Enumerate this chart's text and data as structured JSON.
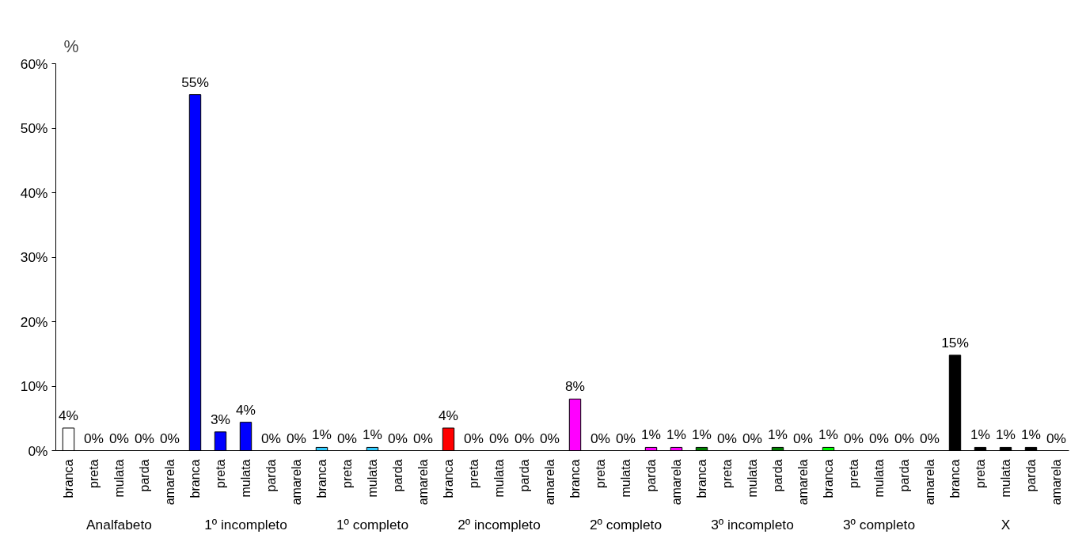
{
  "chart_data": {
    "type": "bar",
    "ylabel": "%",
    "categories": [
      "branca",
      "preta",
      "mulata",
      "parda",
      "amarela",
      "branca",
      "preta",
      "mulata",
      "parda",
      "amarela",
      "branca",
      "preta",
      "mulata",
      "parda",
      "amarela",
      "branca",
      "preta",
      "mulata",
      "parda",
      "amarela",
      "branca",
      "preta",
      "mulata",
      "parda",
      "amarela",
      "branca",
      "preta",
      "mulata",
      "parda",
      "amarela",
      "branca",
      "preta",
      "mulata",
      "parda",
      "amarela",
      "branca",
      "preta",
      "mulata",
      "parda",
      "amarela"
    ],
    "values": [
      3.5,
      0,
      0,
      0,
      0,
      55.2,
      2.9,
      4.4,
      0,
      0,
      0.5,
      0,
      0.5,
      0,
      0,
      3.5,
      0,
      0,
      0,
      0,
      8.0,
      0,
      0,
      0.5,
      0.5,
      0.5,
      0,
      0,
      0.5,
      0,
      0.5,
      0,
      0,
      0,
      0,
      14.8,
      0.5,
      0.5,
      0.5,
      0
    ],
    "value_labels": [
      "4%",
      "0%",
      "0%",
      "0%",
      "0%",
      "55%",
      "3%",
      "4%",
      "0%",
      "0%",
      "1%",
      "0%",
      "1%",
      "0%",
      "0%",
      "4%",
      "0%",
      "0%",
      "0%",
      "0%",
      "8%",
      "0%",
      "0%",
      "1%",
      "1%",
      "1%",
      "0%",
      "0%",
      "1%",
      "0%",
      "1%",
      "0%",
      "0%",
      "0%",
      "0%",
      "15%",
      "1%",
      "1%",
      "1%",
      "0%"
    ],
    "colors": [
      "#ffffff",
      "#ffffff",
      "#ffffff",
      "#ffffff",
      "#ffffff",
      "#0000ff",
      "#0000ff",
      "#0000ff",
      "#0000ff",
      "#0000ff",
      "#33ccff",
      "#33ccff",
      "#33ccff",
      "#33ccff",
      "#33ccff",
      "#ff0000",
      "#ff0000",
      "#ff0000",
      "#ff0000",
      "#ff0000",
      "#ff00ff",
      "#ff00ff",
      "#ff00ff",
      "#ff00ff",
      "#ff00ff",
      "#008000",
      "#008000",
      "#008000",
      "#008000",
      "#008000",
      "#00ff00",
      "#00ff00",
      "#00ff00",
      "#00ff00",
      "#00ff00",
      "#000000",
      "#000000",
      "#000000",
      "#000000",
      "#000000"
    ],
    "annotations": [
      "Analfabeto",
      "1º incompleto",
      "1º completo",
      "2º incompleto",
      "2º completo",
      "3º incompleto",
      "3º completo",
      "X"
    ],
    "ylim": [
      0,
      60
    ],
    "yticks": [
      {
        "value": 0,
        "label": "0%"
      },
      {
        "value": 10,
        "label": "10%"
      },
      {
        "value": 20,
        "label": "20%"
      },
      {
        "value": 30,
        "label": "30%"
      },
      {
        "value": 40,
        "label": "40%"
      },
      {
        "value": 50,
        "label": "50%"
      },
      {
        "value": 60,
        "label": "60%"
      }
    ],
    "grid": false
  }
}
